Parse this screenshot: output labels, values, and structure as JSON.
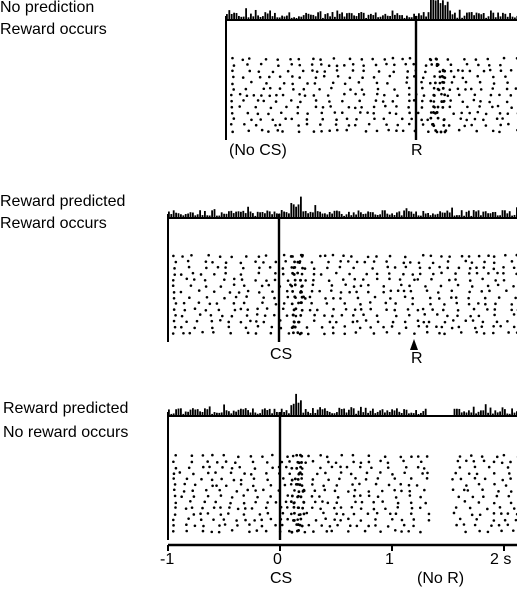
{
  "panels": [
    {
      "label_line1": "No prediction",
      "label_line2": "Reward occurs",
      "event_labels": [
        "(No CS)",
        "R"
      ],
      "has_reward_arrow": false
    },
    {
      "label_line1": "Reward predicted",
      "label_line2": "Reward occurs",
      "event_labels": [
        "CS",
        "R"
      ],
      "has_reward_arrow": true
    },
    {
      "label_line1": "Reward predicted",
      "label_line2": "No reward occurs",
      "event_labels": [
        "CS",
        "(No R)"
      ],
      "has_reward_arrow": false
    }
  ],
  "time_axis": {
    "tick_labels": [
      "-1",
      "0",
      "1",
      "2 s"
    ]
  }
}
